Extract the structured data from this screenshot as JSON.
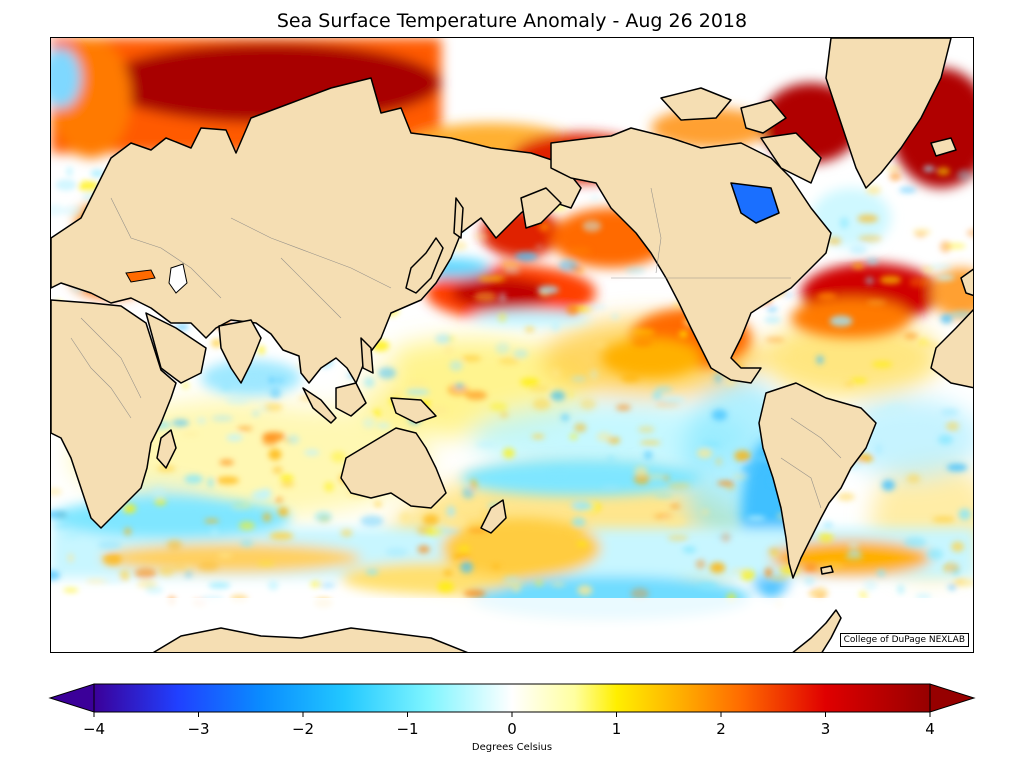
{
  "title": "Sea Surface Temperature Anomaly - Aug 26 2018",
  "credit": "College of DuPage NEXLAB",
  "colorbar": {
    "label": "Degrees Celsius",
    "min": -4,
    "max": 4,
    "ticks": [
      {
        "value": -4,
        "label": "−4"
      },
      {
        "value": -3,
        "label": "−3"
      },
      {
        "value": -2,
        "label": "−2"
      },
      {
        "value": -1,
        "label": "−1"
      },
      {
        "value": 0,
        "label": "0"
      },
      {
        "value": 1,
        "label": "1"
      },
      {
        "value": 2,
        "label": "2"
      },
      {
        "value": 3,
        "label": "3"
      },
      {
        "value": 4,
        "label": "4"
      }
    ],
    "stops": [
      {
        "value": -4,
        "color": "#3b0099"
      },
      {
        "value": -3.2,
        "color": "#2040ff"
      },
      {
        "value": -2.4,
        "color": "#0a8cff"
      },
      {
        "value": -1.6,
        "color": "#22c8ff"
      },
      {
        "value": -0.8,
        "color": "#7ff5ff"
      },
      {
        "value": 0,
        "color": "#ffffff"
      },
      {
        "value": 0.6,
        "color": "#ffffa0"
      },
      {
        "value": 1.0,
        "color": "#ffef00"
      },
      {
        "value": 1.6,
        "color": "#ffb000"
      },
      {
        "value": 2.2,
        "color": "#ff6a00"
      },
      {
        "value": 3.0,
        "color": "#e00000"
      },
      {
        "value": 4,
        "color": "#960000"
      }
    ]
  },
  "colors": {
    "land": "#f5deb3",
    "coast": "#000000",
    "border": "#808080",
    "ocean_neutral": "#ffffff"
  }
}
